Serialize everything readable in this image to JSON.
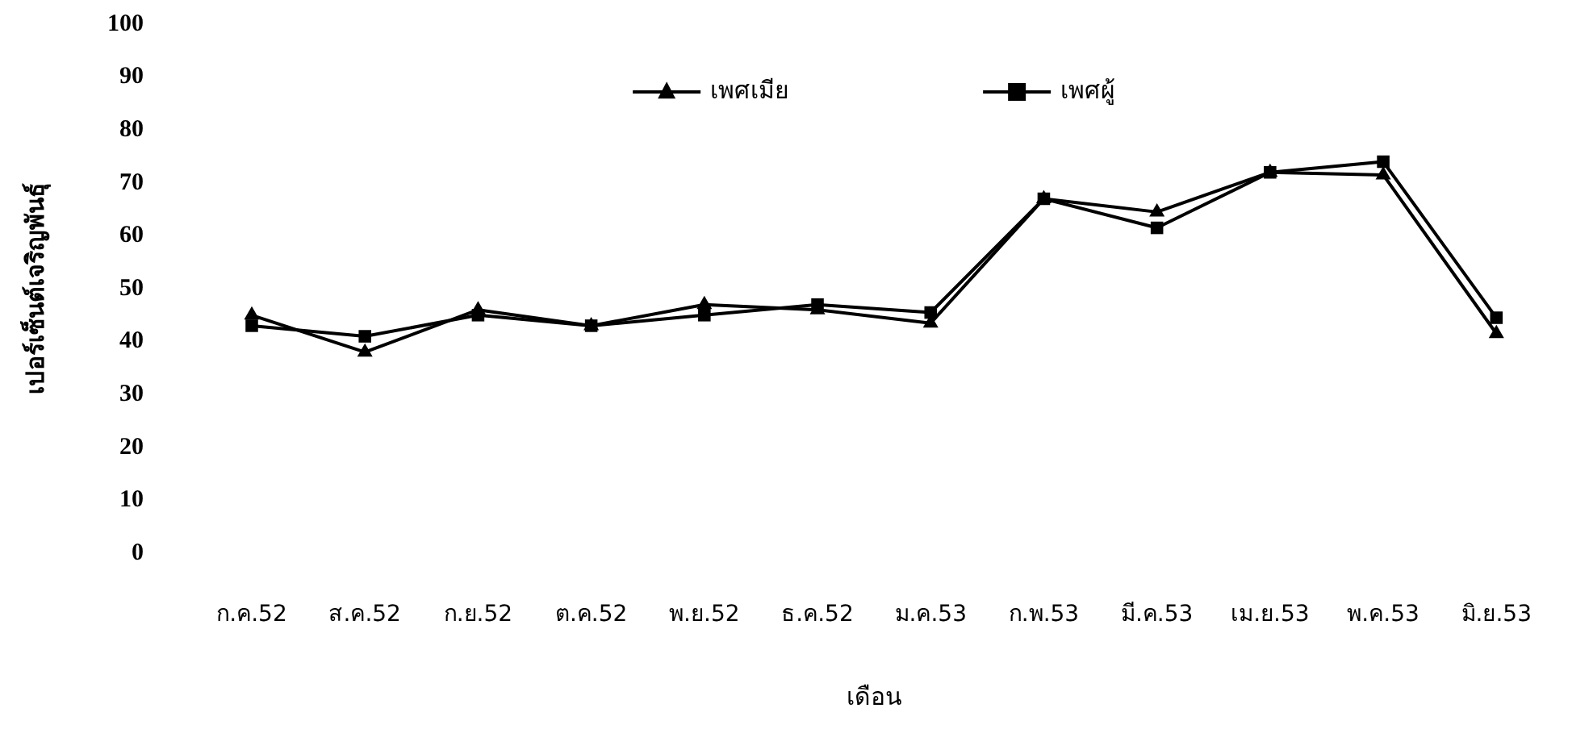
{
  "chart_data": {
    "type": "line",
    "xlabel": "เดือน",
    "ylabel": "เปอร์เซ็นต์เจริญพันธุ์",
    "categories": [
      "ก.ค.52",
      "ส.ค.52",
      "ก.ย.52",
      "ต.ค.52",
      "พ.ย.52",
      "ธ.ค.52",
      "ม.ค.53",
      "ก.พ.53",
      "มี.ค.53",
      "เม.ย.53",
      "พ.ค.53",
      "มิ.ย.53"
    ],
    "series": [
      {
        "name": "เพศเมีย",
        "color": "#000000",
        "marker": "triangle",
        "values": [
          45,
          38,
          46,
          43,
          47,
          46,
          43.5,
          67,
          64.5,
          72,
          71.5,
          41.5
        ]
      },
      {
        "name": "เพศผู้",
        "color": "#000000",
        "marker": "square",
        "values": [
          43,
          41,
          45,
          43,
          45,
          47,
          45.5,
          67,
          61.5,
          72,
          74,
          44.5
        ]
      }
    ],
    "ylim": [
      0,
      100
    ],
    "yticks": [
      0,
      10,
      20,
      30,
      40,
      50,
      60,
      70,
      80,
      90,
      100
    ],
    "legend": "top",
    "line_style": "solid"
  }
}
